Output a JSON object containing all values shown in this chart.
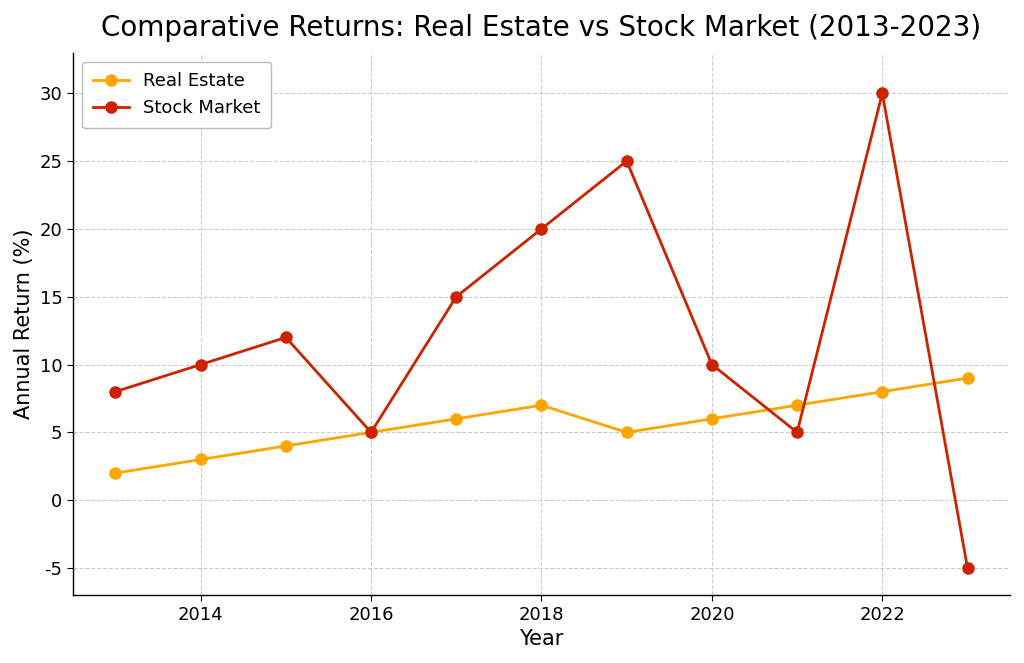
{
  "title": "Comparative Returns: Real Estate vs Stock Market (2013-2023)",
  "xlabel": "Year",
  "ylabel": "Annual Return (%)",
  "years": [
    2013,
    2014,
    2015,
    2016,
    2017,
    2018,
    2019,
    2020,
    2021,
    2022,
    2023
  ],
  "real_estate": [
    2,
    3,
    4,
    5,
    6,
    7,
    5,
    6,
    7,
    8,
    9
  ],
  "stock_market": [
    8,
    10,
    12,
    5,
    15,
    20,
    25,
    10,
    5,
    30,
    -5
  ],
  "real_estate_color": "#FFA500",
  "stock_market_color": "#CC2200",
  "background_color": "#FFFFFF",
  "grid_color": "#CCCCCC",
  "ylim": [
    -7,
    33
  ],
  "xlim": [
    2012.5,
    2023.5
  ],
  "xticks": [
    2014,
    2016,
    2018,
    2020,
    2022
  ],
  "yticks": [
    -5,
    0,
    5,
    10,
    15,
    20,
    25,
    30
  ],
  "legend_labels": [
    "Real Estate",
    "Stock Market"
  ],
  "title_fontsize": 20,
  "label_fontsize": 15,
  "tick_fontsize": 13,
  "legend_fontsize": 13,
  "linewidth": 2,
  "markersize": 8
}
